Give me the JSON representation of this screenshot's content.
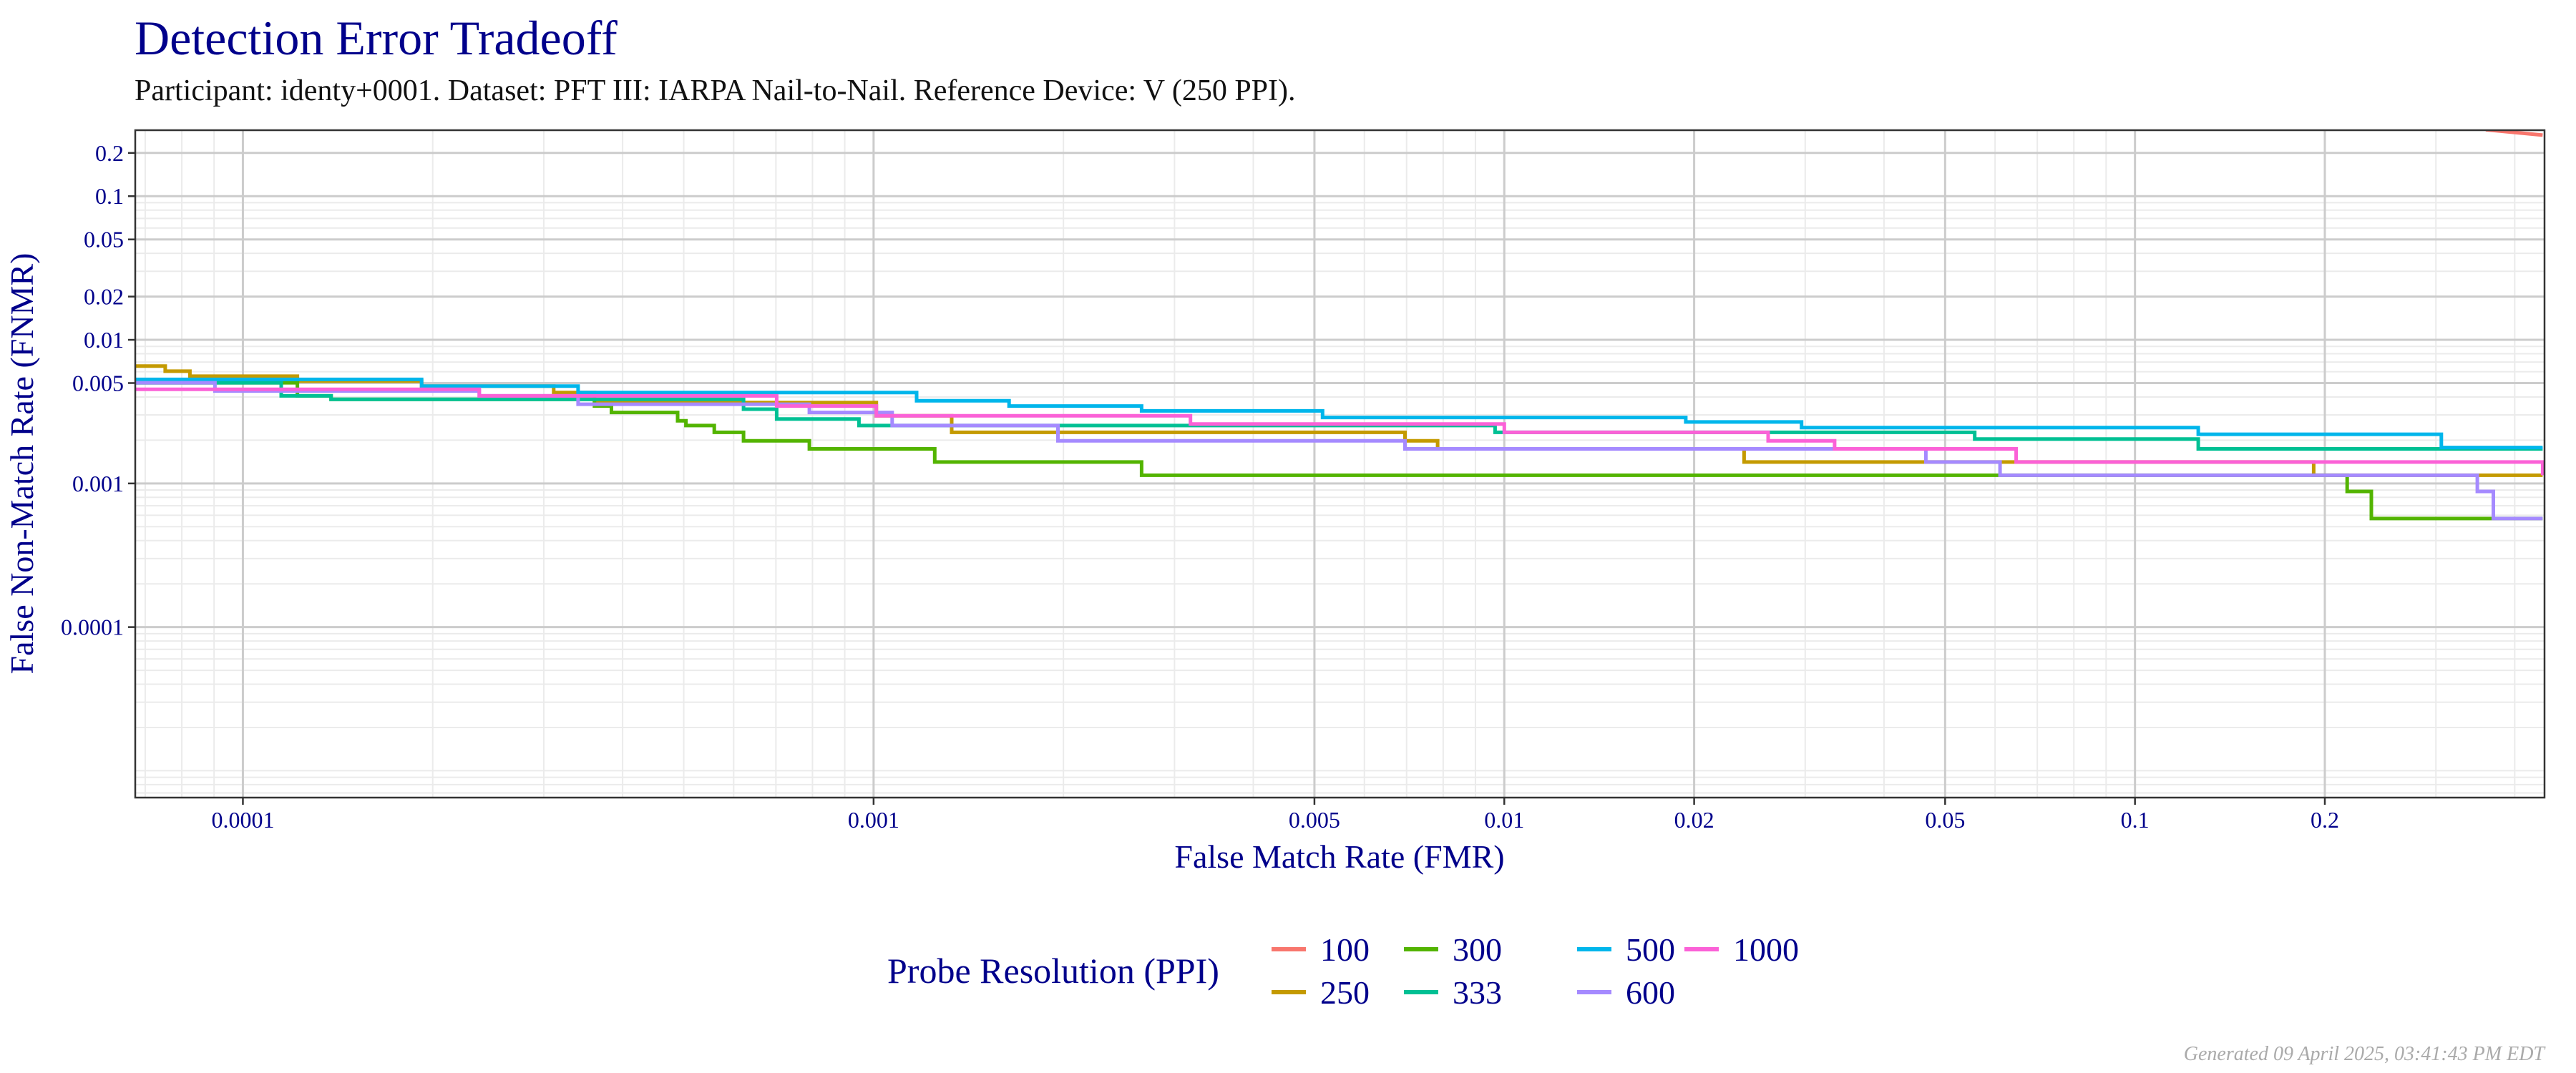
{
  "chart_data": {
    "type": "line",
    "title": "Detection Error Tradeoff",
    "subtitle": "Participant: identy+0001. Dataset: PFT III: IARPA Nail-to-Nail. Reference Device: V (250 PPI).",
    "xlabel": "False Match Rate (FMR)",
    "ylabel": "False Non-Match Rate (FNMR)",
    "x_scale": "log",
    "y_scale": "log",
    "xlim": [
      6.75e-05,
      0.446
    ],
    "ylim": [
      6.5e-06,
      0.288
    ],
    "x_ticks": [
      {
        "v": 0.0001,
        "label": "0.0001"
      },
      {
        "v": 0.001,
        "label": "0.001"
      },
      {
        "v": 0.005,
        "label": "0.005"
      },
      {
        "v": 0.01,
        "label": "0.01"
      },
      {
        "v": 0.02,
        "label": "0.02"
      },
      {
        "v": 0.05,
        "label": "0.05"
      },
      {
        "v": 0.1,
        "label": "0.1"
      },
      {
        "v": 0.2,
        "label": "0.2"
      }
    ],
    "y_ticks": [
      {
        "v": 0.2,
        "label": "0.2"
      },
      {
        "v": 0.1,
        "label": "0.1"
      },
      {
        "v": 0.05,
        "label": "0.05"
      },
      {
        "v": 0.02,
        "label": "0.02"
      },
      {
        "v": 0.01,
        "label": "0.01"
      },
      {
        "v": 0.005,
        "label": "0.005"
      },
      {
        "v": 0.001,
        "label": "0.001"
      },
      {
        "v": 0.0001,
        "label": "0.0001"
      }
    ],
    "grid": true,
    "legend": {
      "title": "Probe Resolution (PPI)",
      "placement": "bottom"
    },
    "series": [
      {
        "name": "100",
        "color": "#F8766D",
        "style": "line",
        "points": [
          [
            0.36,
            0.29
          ],
          [
            0.443,
            0.266
          ]
        ]
      },
      {
        "name": "250",
        "color": "#C49A00",
        "style": "step",
        "points": [
          [
            6.75e-05,
            0.00656
          ],
          [
            7.53e-05,
            0.00605
          ],
          [
            8.24e-05,
            0.00558
          ],
          [
            0.000122,
            0.00516
          ],
          [
            0.000192,
            0.00476
          ],
          [
            0.000311,
            0.00429
          ],
          [
            0.000361,
            0.00366
          ],
          [
            0.00101,
            0.00296
          ],
          [
            0.00133,
            0.00227
          ],
          [
            0.00696,
            0.00198
          ],
          [
            0.00784,
            0.00174
          ],
          [
            0.024,
            0.00141
          ],
          [
            0.192,
            0.00114
          ],
          [
            0.443,
            0.00114
          ]
        ]
      },
      {
        "name": "300",
        "color": "#53B400",
        "style": "step",
        "points": [
          [
            6.75e-05,
            0.00502
          ],
          [
            0.000122,
            0.00407
          ],
          [
            0.000138,
            0.00385
          ],
          [
            0.000361,
            0.00346
          ],
          [
            0.000384,
            0.00312
          ],
          [
            0.000489,
            0.00273
          ],
          [
            0.000504,
            0.00253
          ],
          [
            0.000559,
            0.00227
          ],
          [
            0.000622,
            0.00198
          ],
          [
            0.000791,
            0.00174
          ],
          [
            0.00125,
            0.00141
          ],
          [
            0.00266,
            0.00114
          ],
          [
            0.217,
            0.00088
          ],
          [
            0.237,
            0.00057
          ],
          [
            0.443,
            0.00057
          ]
        ]
      },
      {
        "name": "333",
        "color": "#00C094",
        "style": "step",
        "points": [
          [
            6.75e-05,
            0.00502
          ],
          [
            0.000115,
            0.00407
          ],
          [
            0.000138,
            0.00385
          ],
          [
            0.000622,
            0.00329
          ],
          [
            0.000702,
            0.00281
          ],
          [
            0.000948,
            0.00253
          ],
          [
            0.00967,
            0.00227
          ],
          [
            0.0557,
            0.00204
          ],
          [
            0.126,
            0.00174
          ],
          [
            0.443,
            0.00174
          ]
        ]
      },
      {
        "name": "500",
        "color": "#00B6EB",
        "style": "step",
        "points": [
          [
            6.75e-05,
            0.0053
          ],
          [
            0.000192,
            0.00476
          ],
          [
            0.00034,
            0.00429
          ],
          [
            0.00117,
            0.00376
          ],
          [
            0.00164,
            0.00346
          ],
          [
            0.00266,
            0.0032
          ],
          [
            0.00515,
            0.00288
          ],
          [
            0.0194,
            0.00268
          ],
          [
            0.0296,
            0.00245
          ],
          [
            0.126,
            0.0022
          ],
          [
            0.306,
            0.00178
          ],
          [
            0.443,
            0.00178
          ]
        ]
      },
      {
        "name": "600",
        "color": "#A58AFF",
        "style": "step",
        "points": [
          [
            6.75e-05,
            0.00502
          ],
          [
            9.03e-05,
            0.0044
          ],
          [
            0.000237,
            0.00407
          ],
          [
            0.00034,
            0.00356
          ],
          [
            0.000791,
            0.00312
          ],
          [
            0.00107,
            0.00253
          ],
          [
            0.00196,
            0.00198
          ],
          [
            0.00696,
            0.00174
          ],
          [
            0.0466,
            0.00141
          ],
          [
            0.0611,
            0.00114
          ],
          [
            0.349,
            0.00088
          ],
          [
            0.37,
            0.00057
          ],
          [
            0.443,
            0.00057
          ]
        ]
      },
      {
        "name": "1000",
        "color": "#FB61D7",
        "style": "step",
        "points": [
          [
            6.75e-05,
            0.00452
          ],
          [
            0.000237,
            0.00407
          ],
          [
            0.000702,
            0.00346
          ],
          [
            0.00101,
            0.00296
          ],
          [
            0.00318,
            0.00259
          ],
          [
            0.01,
            0.00227
          ],
          [
            0.0262,
            0.00198
          ],
          [
            0.0334,
            0.00174
          ],
          [
            0.0648,
            0.00141
          ],
          [
            0.443,
            0.00141
          ],
          [
            0.443,
            0.00114
          ]
        ]
      }
    ]
  },
  "footer": "Generated 09 April 2025, 03:41:43 PM EDT",
  "colors": {
    "text_accent": "#00008B",
    "panel_border": "#333333",
    "major_grid": "#CCCCCC",
    "minor_grid": "#EBEBEB",
    "footer": "#AAAAAA"
  }
}
